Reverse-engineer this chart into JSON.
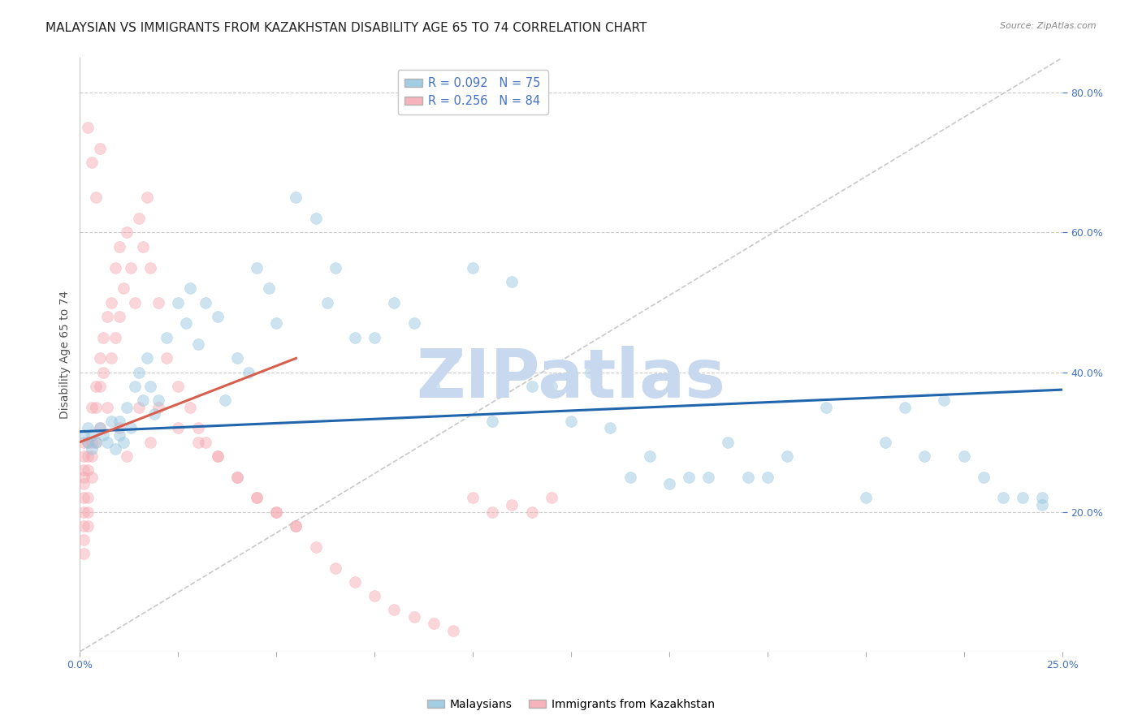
{
  "title": "MALAYSIAN VS IMMIGRANTS FROM KAZAKHSTAN DISABILITY AGE 65 TO 74 CORRELATION CHART",
  "source": "Source: ZipAtlas.com",
  "ylabel": "Disability Age 65 to 74",
  "xlim": [
    0.0,
    0.25
  ],
  "ylim": [
    0.0,
    0.85
  ],
  "right_yticks": [
    0.2,
    0.4,
    0.6,
    0.8
  ],
  "legend_entries": [
    {
      "label": "R = 0.092   N = 75",
      "color": "#92c5de"
    },
    {
      "label": "R = 0.256   N = 84",
      "color": "#f4a6b0"
    }
  ],
  "legend_labels_bottom": [
    "Malaysians",
    "Immigrants from Kazakhstan"
  ],
  "blue_color": "#92c5de",
  "pink_color": "#f4a6b0",
  "blue_line_color": "#2166ac",
  "pink_line_color": "#d6604d",
  "watermark": "ZIPatlas",
  "blue_scatter_x": [
    0.001,
    0.002,
    0.002,
    0.003,
    0.003,
    0.004,
    0.005,
    0.006,
    0.007,
    0.008,
    0.009,
    0.01,
    0.01,
    0.011,
    0.012,
    0.013,
    0.014,
    0.015,
    0.016,
    0.017,
    0.018,
    0.019,
    0.02,
    0.022,
    0.025,
    0.027,
    0.028,
    0.03,
    0.032,
    0.035,
    0.037,
    0.04,
    0.043,
    0.045,
    0.048,
    0.05,
    0.055,
    0.06,
    0.063,
    0.065,
    0.07,
    0.075,
    0.08,
    0.085,
    0.09,
    0.095,
    0.1,
    0.105,
    0.11,
    0.115,
    0.12,
    0.125,
    0.13,
    0.135,
    0.14,
    0.145,
    0.15,
    0.155,
    0.16,
    0.165,
    0.17,
    0.175,
    0.18,
    0.19,
    0.2,
    0.205,
    0.21,
    0.215,
    0.22,
    0.225,
    0.23,
    0.235,
    0.24,
    0.245,
    0.245
  ],
  "blue_scatter_y": [
    0.31,
    0.3,
    0.32,
    0.29,
    0.31,
    0.3,
    0.32,
    0.31,
    0.3,
    0.33,
    0.29,
    0.31,
    0.33,
    0.3,
    0.35,
    0.32,
    0.38,
    0.4,
    0.36,
    0.42,
    0.38,
    0.34,
    0.36,
    0.45,
    0.5,
    0.47,
    0.52,
    0.44,
    0.5,
    0.48,
    0.36,
    0.42,
    0.4,
    0.55,
    0.52,
    0.47,
    0.65,
    0.62,
    0.5,
    0.55,
    0.45,
    0.45,
    0.5,
    0.47,
    0.38,
    0.42,
    0.55,
    0.33,
    0.53,
    0.38,
    0.38,
    0.33,
    0.4,
    0.32,
    0.25,
    0.28,
    0.24,
    0.25,
    0.25,
    0.3,
    0.25,
    0.25,
    0.28,
    0.35,
    0.22,
    0.3,
    0.35,
    0.28,
    0.36,
    0.28,
    0.25,
    0.22,
    0.22,
    0.22,
    0.21
  ],
  "pink_scatter_x": [
    0.001,
    0.001,
    0.001,
    0.001,
    0.001,
    0.001,
    0.001,
    0.001,
    0.001,
    0.001,
    0.002,
    0.002,
    0.002,
    0.002,
    0.002,
    0.002,
    0.003,
    0.003,
    0.003,
    0.003,
    0.004,
    0.004,
    0.004,
    0.005,
    0.005,
    0.005,
    0.006,
    0.006,
    0.007,
    0.007,
    0.008,
    0.008,
    0.009,
    0.009,
    0.01,
    0.01,
    0.011,
    0.012,
    0.013,
    0.014,
    0.015,
    0.016,
    0.017,
    0.018,
    0.02,
    0.022,
    0.025,
    0.028,
    0.03,
    0.032,
    0.035,
    0.04,
    0.045,
    0.05,
    0.055,
    0.06,
    0.065,
    0.07,
    0.075,
    0.08,
    0.085,
    0.09,
    0.095,
    0.1,
    0.105,
    0.11,
    0.115,
    0.12,
    0.01,
    0.012,
    0.015,
    0.018,
    0.02,
    0.025,
    0.03,
    0.035,
    0.04,
    0.045,
    0.05,
    0.055,
    0.002,
    0.003,
    0.004,
    0.005
  ],
  "pink_scatter_y": [
    0.3,
    0.28,
    0.26,
    0.25,
    0.24,
    0.22,
    0.2,
    0.18,
    0.16,
    0.14,
    0.3,
    0.28,
    0.26,
    0.22,
    0.2,
    0.18,
    0.35,
    0.3,
    0.28,
    0.25,
    0.38,
    0.35,
    0.3,
    0.42,
    0.38,
    0.32,
    0.45,
    0.4,
    0.48,
    0.35,
    0.5,
    0.42,
    0.55,
    0.45,
    0.58,
    0.48,
    0.52,
    0.6,
    0.55,
    0.5,
    0.62,
    0.58,
    0.65,
    0.55,
    0.5,
    0.42,
    0.38,
    0.35,
    0.32,
    0.3,
    0.28,
    0.25,
    0.22,
    0.2,
    0.18,
    0.15,
    0.12,
    0.1,
    0.08,
    0.06,
    0.05,
    0.04,
    0.03,
    0.22,
    0.2,
    0.21,
    0.2,
    0.22,
    0.32,
    0.28,
    0.35,
    0.3,
    0.35,
    0.32,
    0.3,
    0.28,
    0.25,
    0.22,
    0.2,
    0.18,
    0.75,
    0.7,
    0.65,
    0.72
  ],
  "blue_line_x": [
    0.0,
    0.25
  ],
  "blue_line_y": [
    0.315,
    0.375
  ],
  "pink_line_x": [
    0.0,
    0.055
  ],
  "pink_line_y": [
    0.3,
    0.42
  ],
  "background_color": "#ffffff",
  "grid_color": "#cccccc",
  "title_fontsize": 11,
  "axis_label_fontsize": 10,
  "tick_fontsize": 9,
  "scatter_size": 100,
  "scatter_alpha": 0.45,
  "watermark_color": "#c8d8ee",
  "watermark_fontsize": 60
}
